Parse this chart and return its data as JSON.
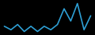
{
  "values": [
    82,
    80,
    83,
    79,
    82,
    79,
    82,
    80,
    83,
    92,
    85,
    95,
    80,
    88
  ],
  "line_color": "#2e9fd4",
  "background_color": "#000000",
  "linewidth": 1.2,
  "ylim": [
    77,
    97
  ]
}
